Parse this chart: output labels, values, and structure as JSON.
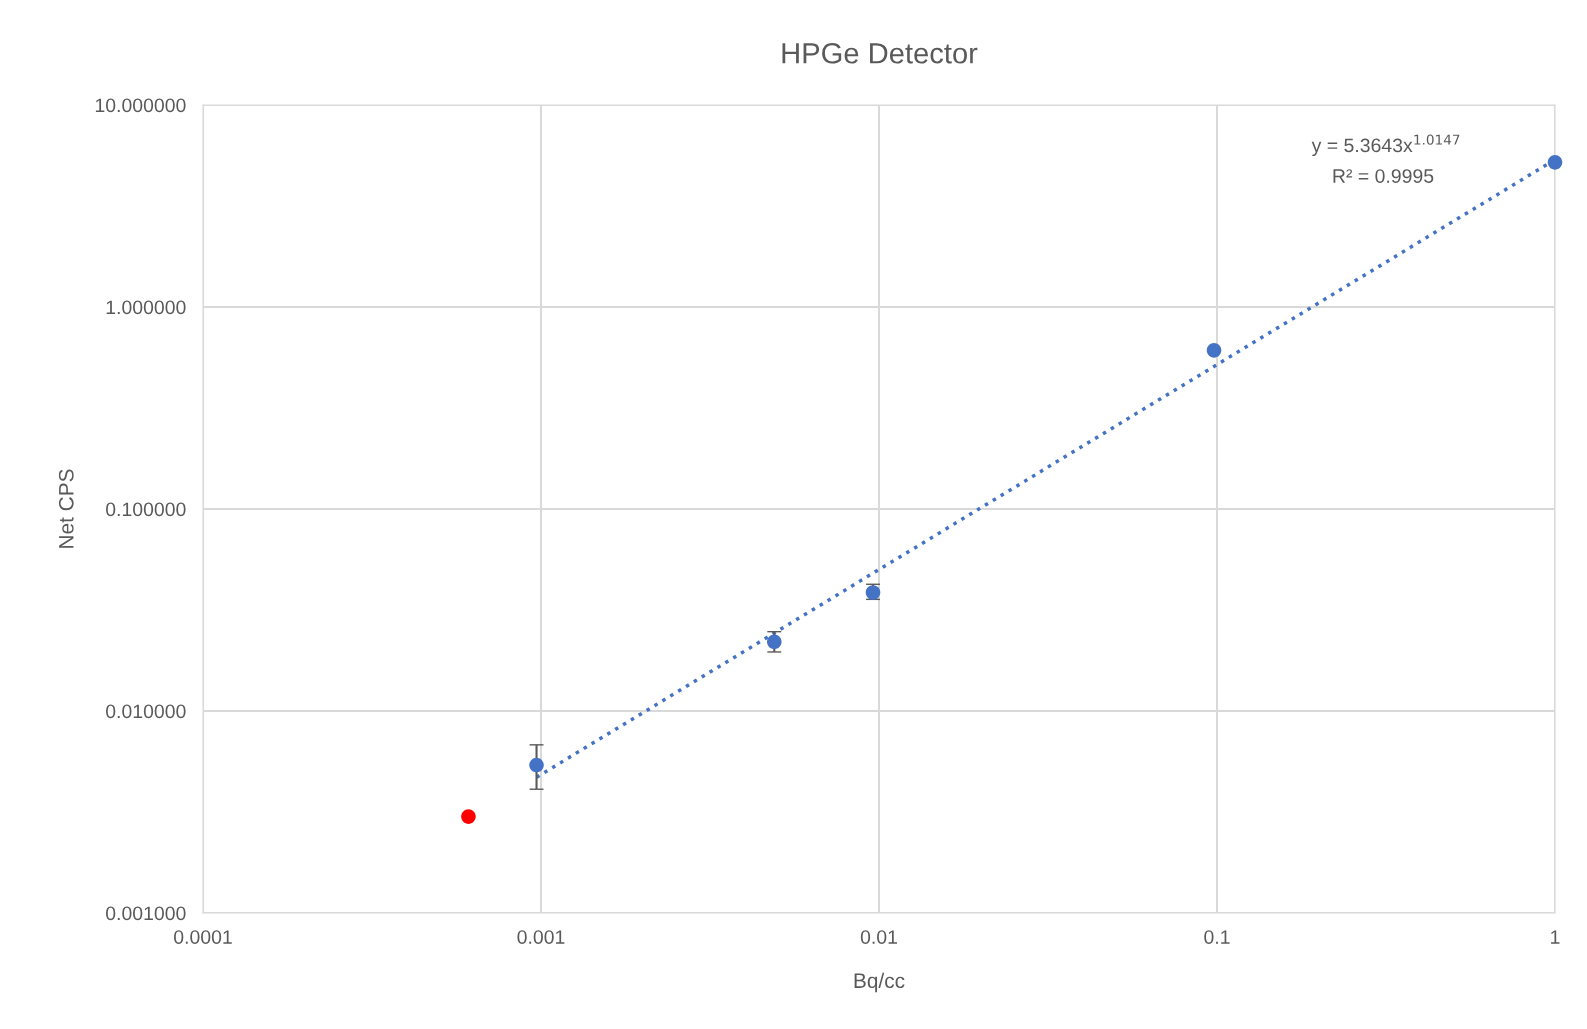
{
  "chart_data": {
    "type": "scatter",
    "title": "HPGe Detector",
    "xlabel": "Bq/cc",
    "ylabel": "Net CPS",
    "log": "xy",
    "grid": true,
    "legend": false,
    "xlim": [
      0.0001,
      1
    ],
    "xticks": [
      0.0001,
      0.001,
      0.01,
      0.1,
      1
    ],
    "ylim": [
      0.001,
      10
    ],
    "yticks": [
      {
        "value": 0.001,
        "label": "0.001000"
      },
      {
        "value": 0.01,
        "label": "0.010000"
      },
      {
        "value": 0.1,
        "label": "0.100000"
      },
      {
        "value": 1,
        "label": "1.000000"
      },
      {
        "value": 10,
        "label": "10.000000"
      }
    ],
    "series": [
      {
        "marker": "circle",
        "color": "#4472c4",
        "x": [
          0.00097,
          0.0049,
          0.0096,
          0.098,
          1
        ],
        "values": [
          0.0054,
          0.022,
          0.0386,
          0.61,
          5.2
        ],
        "errors": [
          [
            0.0041,
            0.0068
          ],
          [
            0.0196,
            0.0247
          ],
          [
            0.0357,
            0.0424
          ],
          null,
          null
        ]
      },
      {
        "marker": "circle",
        "color": "#ff0000",
        "x": [
          0.00061
        ],
        "values": [
          0.003
        ]
      },
      {
        "type": "line",
        "color": "#4472c4",
        "line_style": "dotted",
        "marker": "none",
        "x": [
          0.00097,
          1
        ],
        "values": [
          0.0047,
          5.364
        ]
      }
    ],
    "annotations": [
      "y = 5.3643x$^{1.0147}$",
      "R² = 0.9995"
    ]
  }
}
